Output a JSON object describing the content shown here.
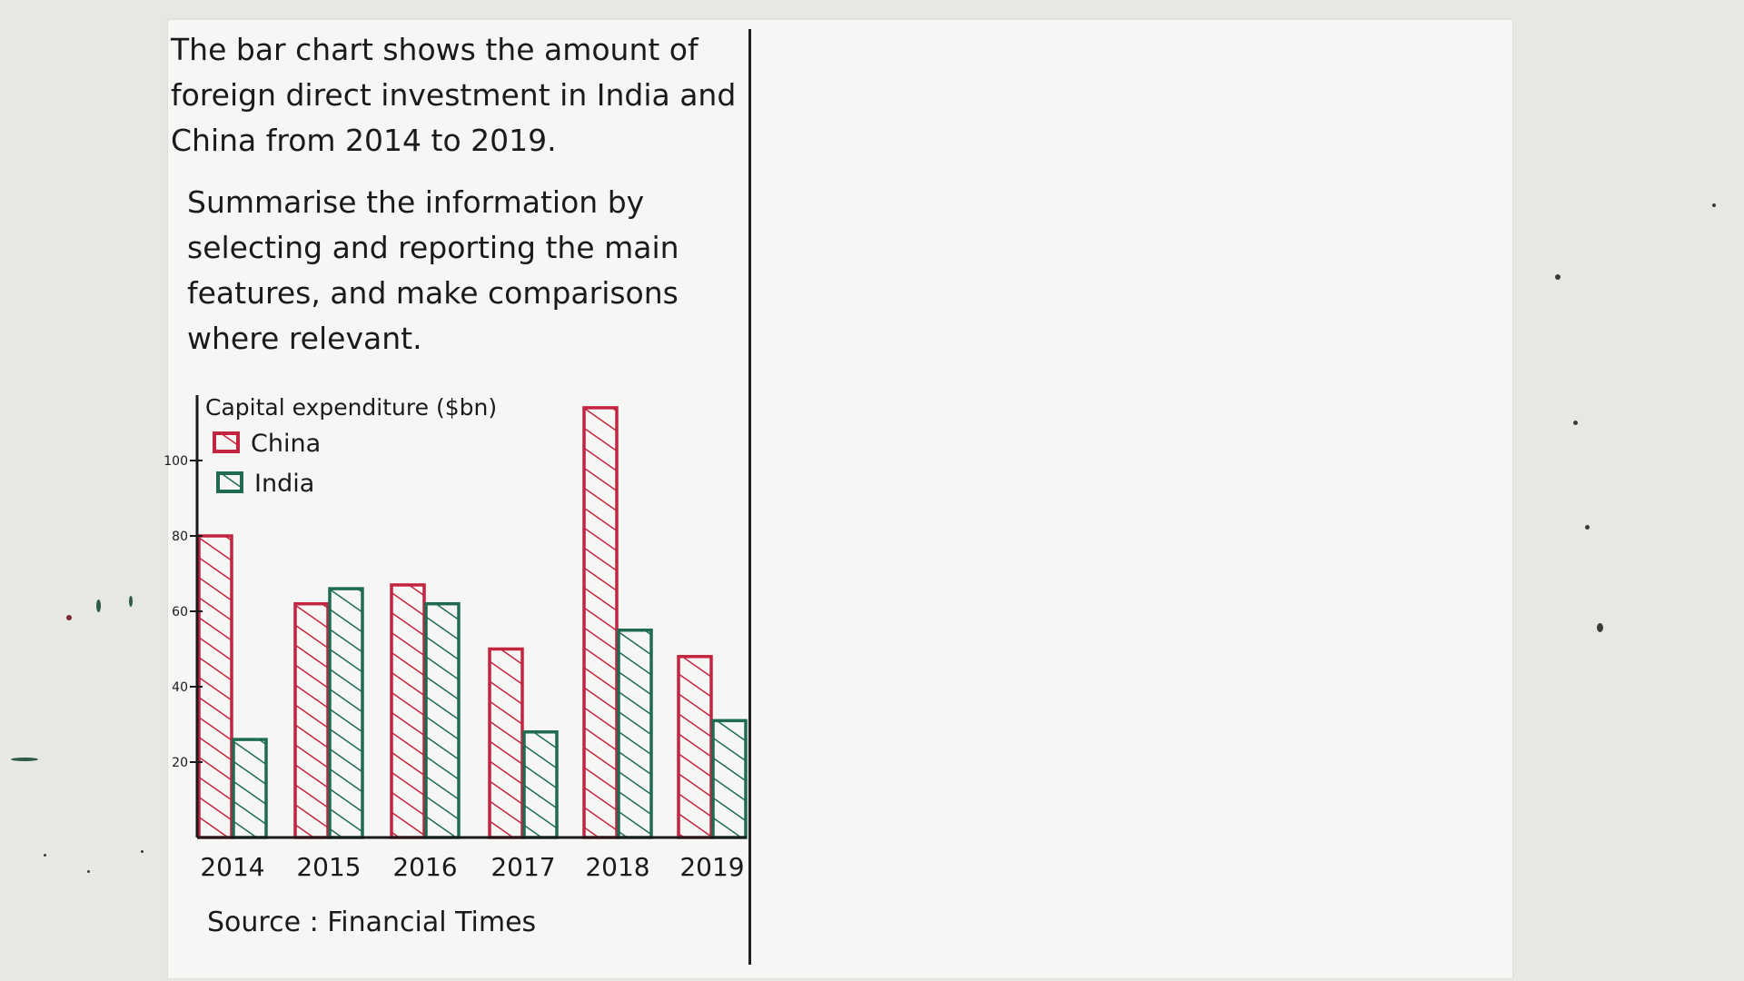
{
  "prompt": {
    "intro": "The bar chart shows the amount of foreign direct investment in India and China from 2014 to 2019.",
    "task": "Summarise the information by selecting and reporting the main features, and make comparisons where relevant."
  },
  "colors": {
    "china": "#c3243f",
    "india": "#1e6b52",
    "ink": "#1a1a1a"
  },
  "chart_data": {
    "type": "bar",
    "title": "Capital expenditure ($bn)",
    "xlabel": "",
    "ylabel": "",
    "categories": [
      "2014",
      "2015",
      "2016",
      "2017",
      "2018",
      "2019"
    ],
    "series": [
      {
        "name": "China",
        "values": [
          80,
          62,
          67,
          50,
          114,
          48
        ]
      },
      {
        "name": "India",
        "values": [
          26,
          66,
          62,
          28,
          55,
          31
        ]
      }
    ],
    "yticks": [
      "20",
      "40",
      "60",
      "80",
      "100"
    ],
    "ylim": [
      0,
      120
    ],
    "legend": "top-left",
    "grid": false,
    "source": "Source : Financial Times"
  }
}
